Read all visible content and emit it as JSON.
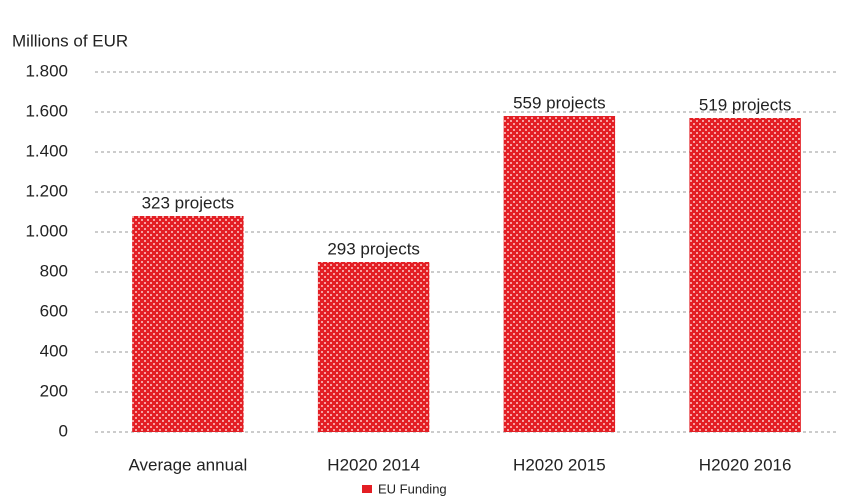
{
  "chart_data": {
    "type": "bar",
    "y_label": "Millions of EUR",
    "categories": [
      "Average annual",
      "H2020 2014",
      "H2020 2015",
      "H2020 2016"
    ],
    "values": [
      1080,
      850,
      1580,
      1570
    ],
    "annotations": [
      "323 projects",
      "293 projects",
      "559 projects",
      "519 projects"
    ],
    "series_name": "EU Funding",
    "color": "#e31e24",
    "ylim": [
      0,
      1800
    ],
    "yticks": [
      0,
      200,
      400,
      600,
      800,
      {
        "value": 1000,
        "label": "1.000"
      },
      {
        "value": 1200,
        "label": "1.200"
      },
      {
        "value": 1400,
        "label": "1.400"
      },
      {
        "value": 1600,
        "label": "1.600"
      },
      {
        "value": 1800,
        "label": "1.800"
      }
    ],
    "grid": true,
    "legend": "bottom"
  }
}
